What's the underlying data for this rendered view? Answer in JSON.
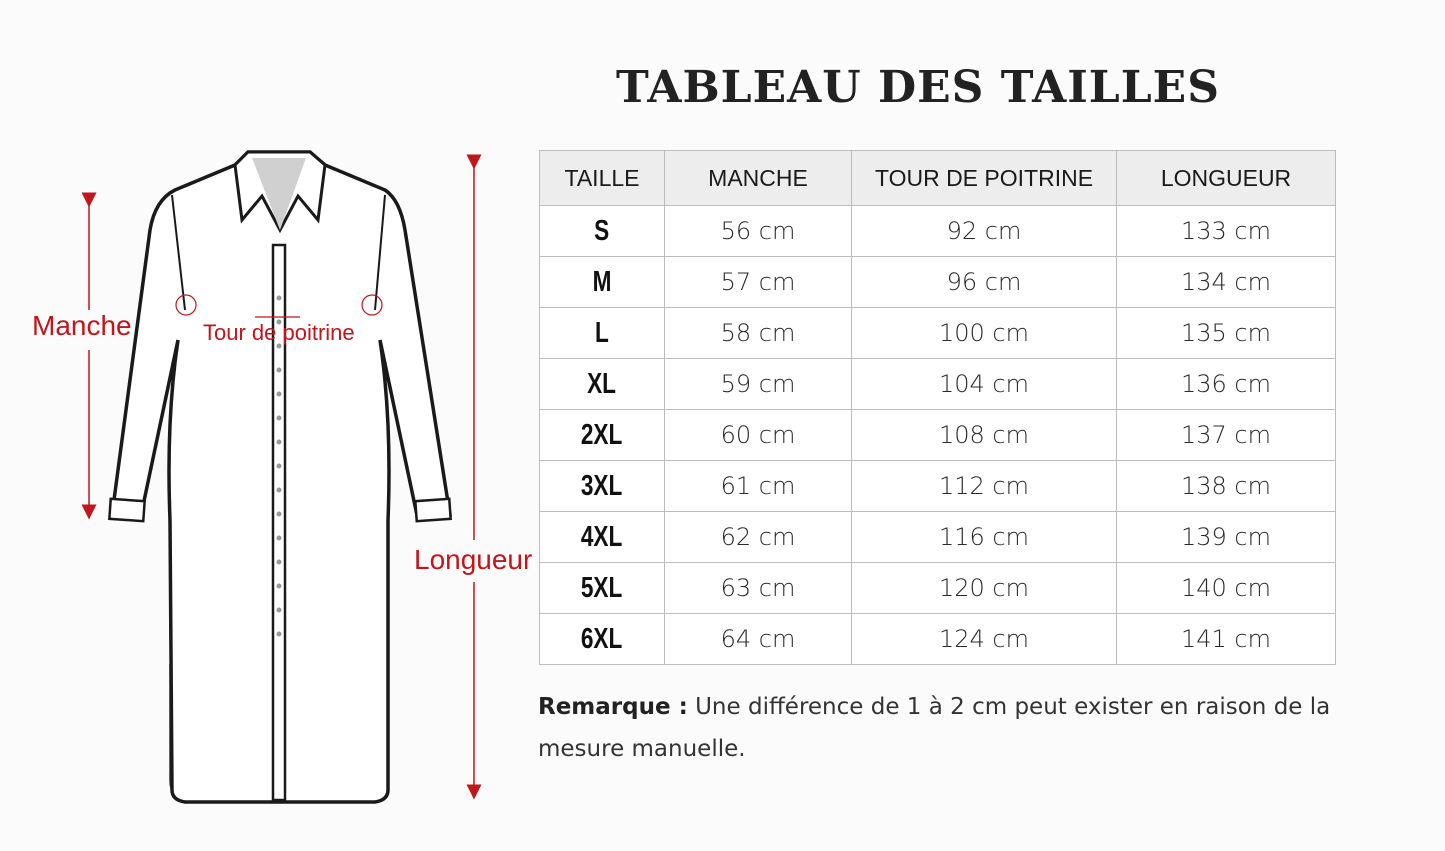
{
  "title": "TABLEAU DES TAILLES",
  "diagram": {
    "labels": {
      "sleeve": "Manche",
      "chest": "Tour de poitrine",
      "length": "Longueur"
    },
    "accent_color": "#c0161c"
  },
  "table": {
    "headers": [
      "TAILLE",
      "MANCHE",
      "TOUR DE POITRINE",
      "LONGUEUR"
    ],
    "rows": [
      [
        "S",
        "56 cm",
        "92 cm",
        "133 cm"
      ],
      [
        "M",
        "57 cm",
        "96 cm",
        "134 cm"
      ],
      [
        "L",
        "58 cm",
        "100 cm",
        "135 cm"
      ],
      [
        "XL",
        "59 cm",
        "104 cm",
        "136 cm"
      ],
      [
        "2XL",
        "60 cm",
        "108 cm",
        "137 cm"
      ],
      [
        "3XL",
        "61 cm",
        "112 cm",
        "138 cm"
      ],
      [
        "4XL",
        "62 cm",
        "116 cm",
        "139 cm"
      ],
      [
        "5XL",
        "63 cm",
        "120 cm",
        "140 cm"
      ],
      [
        "6XL",
        "64 cm",
        "124 cm",
        "141 cm"
      ]
    ]
  },
  "note": {
    "label": "Remarque :",
    "text": " Une différence de 1 à 2 cm peut exister en raison de la mesure manuelle."
  }
}
